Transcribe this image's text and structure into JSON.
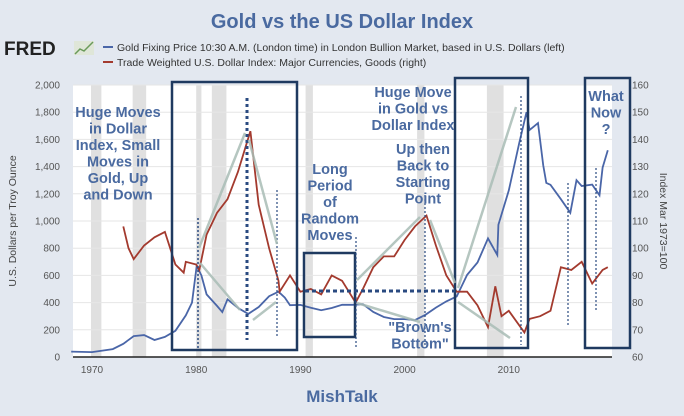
{
  "chart_data": {
    "type": "line",
    "title": "Gold vs the US Dollar Index",
    "logo": "FRED",
    "source_credit": "MishTalk",
    "ylabel_left": "U.S. Dollars per Troy Ounce",
    "ylabel_right": "Index Mar 1973=100",
    "xticks": [
      "1970",
      "1980",
      "1990",
      "2000",
      "2010"
    ],
    "yticks_left": [
      "0",
      "200",
      "400",
      "600",
      "800",
      "1,000",
      "1,200",
      "1,400",
      "1,600",
      "1,800",
      "2,000"
    ],
    "yticks_right": [
      "60",
      "70",
      "80",
      "90",
      "100",
      "110",
      "120",
      "130",
      "140",
      "150",
      "160"
    ],
    "ylim_left": [
      0,
      2000
    ],
    "ylim_right": [
      60,
      160
    ],
    "grid": true,
    "legend_placement": "top",
    "recession_shading": [
      [
        1969.9,
        1970.9
      ],
      [
        1973.9,
        1975.2
      ],
      [
        1980.0,
        1980.5
      ],
      [
        1981.5,
        1982.9
      ],
      [
        1990.5,
        1991.2
      ],
      [
        2001.2,
        2001.9
      ],
      [
        2007.9,
        2009.5
      ]
    ],
    "series": [
      {
        "name": "Gold Fixing Price 10:30 A.M. (London time) in London Bullion Market, based in U.S. Dollars (left)",
        "color": "#4a66a8",
        "axis": "left",
        "x": [
          1968,
          1970,
          1972,
          1973,
          1974,
          1975,
          1976,
          1977,
          1978,
          1979,
          1979.6,
          1980.05,
          1980.5,
          1981,
          1982,
          1982.5,
          1983,
          1984,
          1985,
          1986,
          1987,
          1987.9,
          1988.5,
          1989,
          1990,
          1991,
          1992,
          1993,
          1994,
          1995,
          1996,
          1997,
          1998,
          1999,
          2000,
          2001,
          2002,
          2003,
          2004,
          2005,
          2006,
          2007,
          2008,
          2008.9,
          2009,
          2010,
          2011,
          2011.7,
          2012,
          2012.8,
          2013.3,
          2013.6,
          2014,
          2015,
          2015.9,
          2016.5,
          2017,
          2018,
          2018.7,
          2019,
          2019.5
        ],
        "y": [
          40,
          36,
          58,
          97,
          154,
          161,
          125,
          148,
          193,
          306,
          400,
          670,
          600,
          460,
          376,
          330,
          424,
          361,
          317,
          368,
          447,
          480,
          437,
          381,
          383,
          362,
          344,
          360,
          384,
          384,
          388,
          331,
          294,
          279,
          279,
          271,
          310,
          363,
          409,
          445,
          604,
          695,
          872,
          750,
          972,
          1225,
          1572,
          1800,
          1669,
          1720,
          1411,
          1280,
          1266,
          1160,
          1060,
          1300,
          1257,
          1268,
          1190,
          1393,
          1520
        ]
      },
      {
        "name": "Trade Weighted U.S. Dollar Index: Major Currencies, Goods (right)",
        "color": "#a33a2e",
        "axis": "right",
        "x": [
          1973,
          1973.5,
          1974,
          1975,
          1976,
          1977,
          1978,
          1978.8,
          1979,
          1980,
          1980.3,
          1981,
          1982,
          1983,
          1984,
          1985.2,
          1986,
          1987,
          1987.9,
          1988,
          1989,
          1990,
          1991,
          1992,
          1993,
          1994,
          1995.3,
          1996,
          1997,
          1998,
          1999,
          2000,
          2001,
          2002.1,
          2003,
          2004,
          2005,
          2006,
          2007,
          2008,
          2008.7,
          2009.3,
          2010,
          2011.5,
          2012,
          2013,
          2014,
          2015,
          2016,
          2017,
          2018,
          2019,
          2019.5
        ],
        "y": [
          108,
          100,
          96,
          101,
          104,
          106,
          94,
          91,
          95,
          94,
          92,
          105,
          113,
          118,
          128,
          143,
          116,
          100,
          88,
          84,
          90,
          84,
          85,
          83,
          90,
          88,
          80,
          85,
          93,
          97,
          97,
          103,
          108,
          112,
          101,
          90,
          84,
          84,
          79,
          71,
          86,
          75,
          77,
          69,
          74,
          75,
          77,
          93,
          92,
          95,
          87,
          92,
          93
        ]
      }
    ],
    "annotations": [
      {
        "lines": [
          "Huge Moves",
          "in Dollar",
          "Index, Small",
          "Moves in",
          "Gold, Up",
          "and Down"
        ]
      },
      {
        "lines": [
          "Long",
          "Period",
          "of",
          "Random",
          "Moves"
        ]
      },
      {
        "lines": [
          "Huge Move",
          "in Gold vs",
          "Dollar Index"
        ]
      },
      {
        "lines": [
          "Up then",
          "Back to",
          "Starting",
          "Point"
        ]
      },
      {
        "lines": [
          "\"Brown's",
          "Bottom\""
        ]
      },
      {
        "lines": [
          "What",
          "Now",
          "?"
        ]
      }
    ]
  }
}
